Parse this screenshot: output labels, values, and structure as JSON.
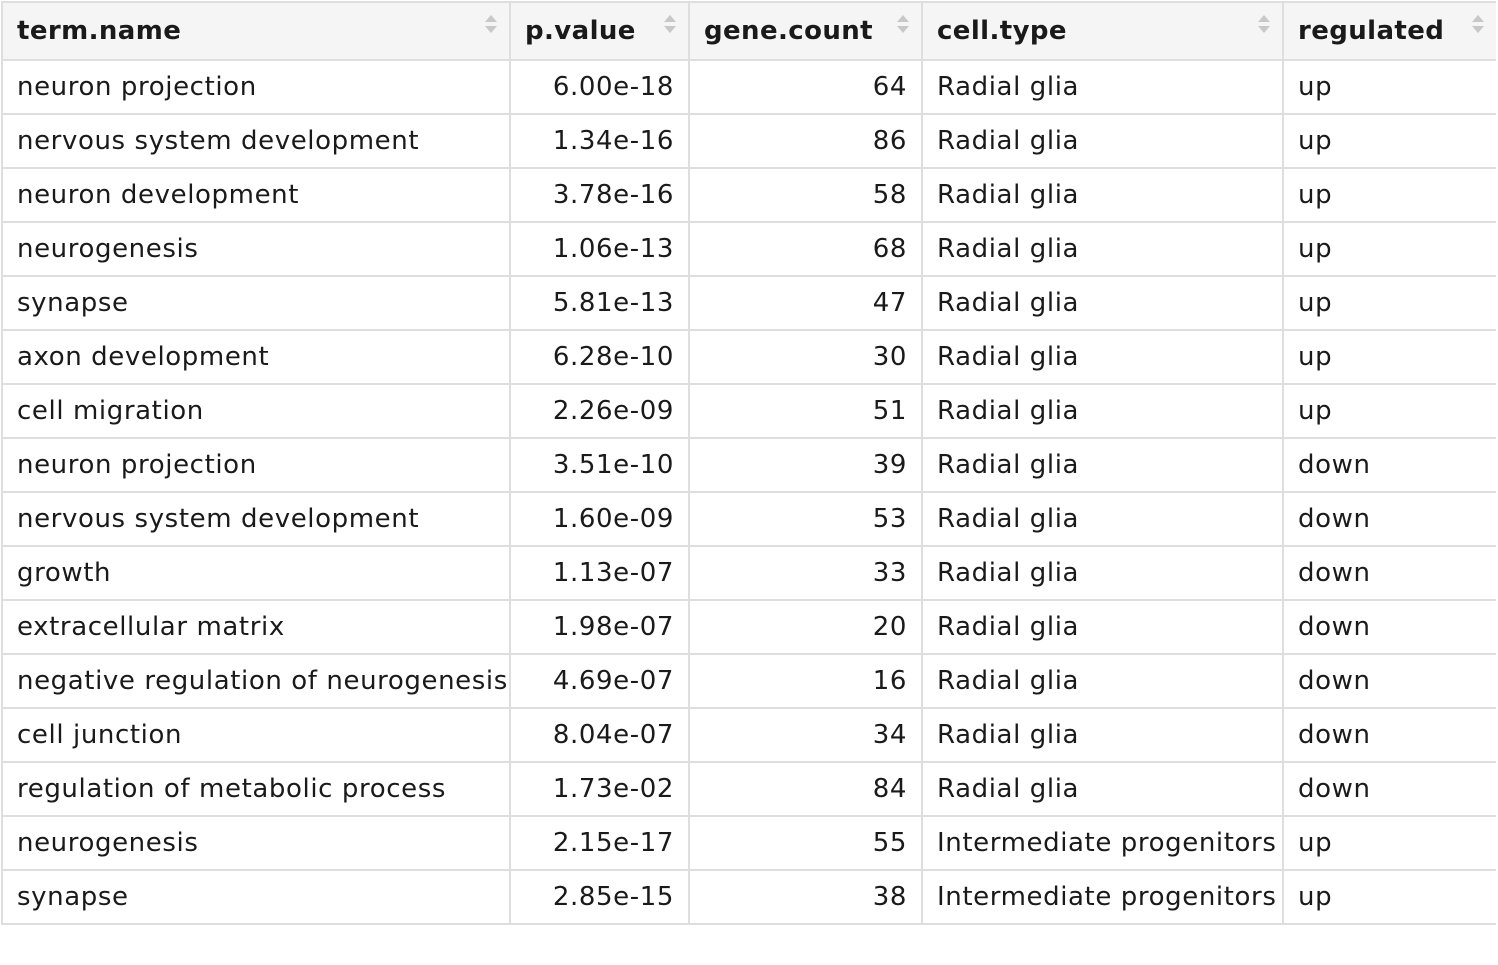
{
  "table": {
    "columns": [
      "term.name",
      "p.value",
      "gene.count",
      "cell.type",
      "regulated"
    ],
    "rows": [
      [
        "neuron projection",
        "6.00e-18",
        "64",
        "Radial glia",
        "up"
      ],
      [
        "nervous system development",
        "1.34e-16",
        "86",
        "Radial glia",
        "up"
      ],
      [
        "neuron development",
        "3.78e-16",
        "58",
        "Radial glia",
        "up"
      ],
      [
        "neurogenesis",
        "1.06e-13",
        "68",
        "Radial glia",
        "up"
      ],
      [
        "synapse",
        "5.81e-13",
        "47",
        "Radial glia",
        "up"
      ],
      [
        "axon development",
        "6.28e-10",
        "30",
        "Radial glia",
        "up"
      ],
      [
        "cell migration",
        "2.26e-09",
        "51",
        "Radial glia",
        "up"
      ],
      [
        "neuron projection",
        "3.51e-10",
        "39",
        "Radial glia",
        "down"
      ],
      [
        "nervous system development",
        "1.60e-09",
        "53",
        "Radial glia",
        "down"
      ],
      [
        "growth",
        "1.13e-07",
        "33",
        "Radial glia",
        "down"
      ],
      [
        "extracellular matrix",
        "1.98e-07",
        "20",
        "Radial glia",
        "down"
      ],
      [
        "negative regulation of neurogenesis",
        "4.69e-07",
        "16",
        "Radial glia",
        "down"
      ],
      [
        "cell junction",
        "8.04e-07",
        "34",
        "Radial glia",
        "down"
      ],
      [
        "regulation of metabolic process",
        "1.73e-02",
        "84",
        "Radial glia",
        "down"
      ],
      [
        "neurogenesis",
        "2.15e-17",
        "55",
        "Intermediate progenitors",
        "up"
      ],
      [
        "synapse",
        "2.85e-15",
        "38",
        "Intermediate progenitors",
        "up"
      ]
    ]
  },
  "icons": {
    "sort": "sort-icon"
  }
}
